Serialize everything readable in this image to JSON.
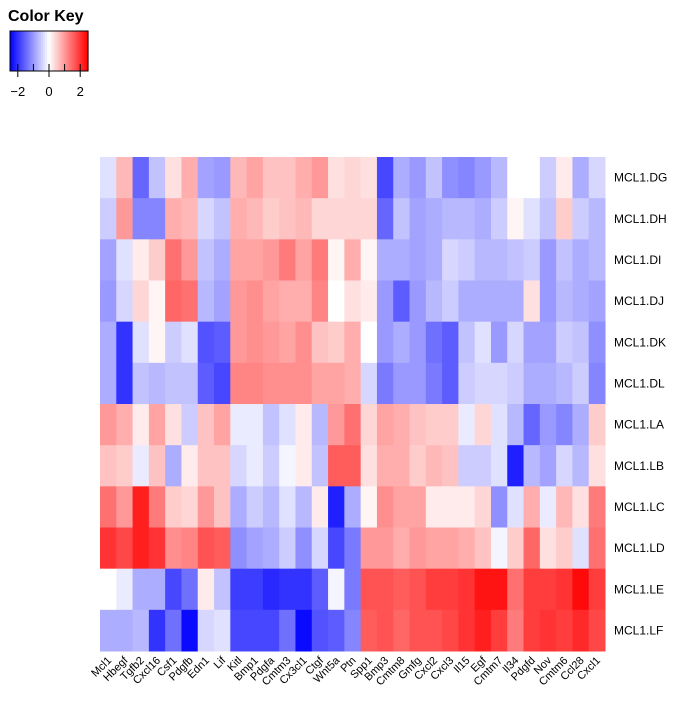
{
  "chart_data": {
    "type": "heatmap",
    "color_key": {
      "title": "Color Key",
      "ticks": [
        "−2",
        "0",
        "2"
      ],
      "range": [
        -2.5,
        2.5
      ],
      "colors": {
        "low": "#0000ff",
        "mid": "#ffffff",
        "high": "#ff0000"
      }
    },
    "rows": [
      "MCL1.DG",
      "MCL1.DH",
      "MCL1.DI",
      "MCL1.DJ",
      "MCL1.DK",
      "MCL1.DL",
      "MCL1.LA",
      "MCL1.LB",
      "MCL1.LC",
      "MCL1.LD",
      "MCL1.LE",
      "MCL1.LF"
    ],
    "columns": [
      "Mcl1",
      "Hbegf",
      "Tgfb2",
      "Cxcl16",
      "Csf1",
      "Pdgfb",
      "Edn1",
      "Lif",
      "Kitl",
      "Bmp1",
      "Pdgfa",
      "Cmtm3",
      "Cx3cl1",
      "Ctgf",
      "Wnt5a",
      "Ptn",
      "Spp1",
      "Bmp3",
      "Cmtm8",
      "Gmfg",
      "Cxcl2",
      "Cxcl3",
      "Il15",
      "Egf",
      "Cmtm7",
      "Il34",
      "Pdgfd",
      "Nov",
      "Cmtm6",
      "Ccl28",
      "Cxcl1"
    ],
    "values": [
      [
        -0.3,
        0.7,
        -1.5,
        -0.6,
        0.3,
        0.8,
        -0.9,
        -1.0,
        0.7,
        0.9,
        0.6,
        0.6,
        0.8,
        1.0,
        0.3,
        0.4,
        0.3,
        -1.8,
        -0.8,
        -1.0,
        -0.6,
        -1.1,
        -1.2,
        -1.0,
        -0.7,
        0.0,
        0.0,
        -0.5,
        0.2,
        -0.8,
        -0.4
      ],
      [
        -0.5,
        1.0,
        -1.2,
        -1.2,
        0.8,
        0.7,
        -0.4,
        -0.6,
        0.8,
        0.7,
        0.5,
        0.6,
        0.7,
        0.4,
        0.4,
        0.4,
        0.4,
        -1.5,
        -0.6,
        -0.9,
        -0.8,
        -0.7,
        -0.7,
        -0.8,
        -0.5,
        0.1,
        -0.3,
        -0.6,
        0.5,
        -0.5,
        -0.7
      ],
      [
        -0.9,
        -0.3,
        0.2,
        0.5,
        1.4,
        1.0,
        -0.6,
        -0.8,
        0.9,
        0.9,
        1.0,
        1.3,
        0.9,
        1.3,
        0.1,
        0.8,
        0.1,
        -0.8,
        -0.8,
        -0.9,
        -0.8,
        -0.4,
        -0.5,
        -0.7,
        -0.7,
        -0.6,
        -0.5,
        -1.0,
        -0.6,
        -0.8,
        -0.7
      ],
      [
        -1.0,
        -0.4,
        0.4,
        0.1,
        1.5,
        1.4,
        -0.7,
        -0.9,
        1.0,
        1.1,
        0.9,
        0.8,
        0.8,
        1.2,
        0.0,
        0.3,
        0.2,
        -1.0,
        -1.6,
        -1.0,
        -0.7,
        -0.5,
        -0.8,
        -0.8,
        -0.8,
        -0.8,
        0.3,
        -1.0,
        -0.7,
        -0.8,
        -0.9
      ],
      [
        -0.8,
        -2.0,
        -0.3,
        0.1,
        -0.5,
        -0.3,
        -1.7,
        -1.6,
        1.0,
        1.1,
        1.0,
        0.9,
        1.1,
        0.6,
        0.5,
        0.8,
        0.0,
        -1.0,
        -0.8,
        -1.0,
        -1.4,
        -1.6,
        -0.6,
        -0.3,
        -1.0,
        -0.4,
        -0.9,
        -0.9,
        -0.5,
        -0.6,
        -1.1
      ],
      [
        -0.8,
        -2.0,
        -0.6,
        -0.7,
        -0.6,
        -0.6,
        -1.6,
        -1.8,
        1.2,
        1.2,
        1.1,
        1.1,
        1.1,
        0.9,
        0.9,
        0.8,
        -0.4,
        -1.3,
        -1.0,
        -1.0,
        -1.3,
        -1.6,
        -0.5,
        -0.4,
        -0.4,
        -0.5,
        -0.8,
        -0.8,
        -0.7,
        -0.5,
        -1.2
      ],
      [
        1.0,
        0.8,
        0.2,
        0.9,
        0.3,
        -0.5,
        0.6,
        0.9,
        -0.2,
        -0.2,
        -0.6,
        -0.3,
        0.2,
        -0.7,
        1.0,
        1.4,
        0.4,
        0.9,
        0.8,
        0.6,
        0.5,
        0.5,
        -0.2,
        0.4,
        -0.3,
        -0.7,
        -1.5,
        -1.0,
        -1.2,
        -0.8,
        0.5
      ],
      [
        0.6,
        0.5,
        -0.2,
        0.6,
        -0.8,
        0.2,
        0.6,
        0.6,
        -0.4,
        -0.2,
        -0.5,
        -0.1,
        0.2,
        -0.6,
        1.6,
        1.6,
        0.3,
        0.8,
        0.8,
        0.5,
        0.7,
        0.6,
        -0.5,
        -0.5,
        -0.3,
        -2.2,
        -0.7,
        -0.9,
        -0.4,
        -0.7,
        0.3
      ],
      [
        1.4,
        1.0,
        2.2,
        1.3,
        0.5,
        0.4,
        1.0,
        0.6,
        -0.8,
        -0.5,
        -0.7,
        -0.3,
        -0.7,
        0.2,
        -2.2,
        -0.8,
        0.1,
        1.1,
        0.9,
        0.9,
        0.2,
        0.2,
        0.2,
        0.4,
        -1.1,
        -0.3,
        0.8,
        -0.2,
        0.7,
        0.3,
        1.3
      ],
      [
        2.0,
        1.8,
        2.2,
        2.0,
        1.1,
        1.2,
        1.7,
        1.6,
        -1.1,
        -0.9,
        -0.8,
        -0.5,
        -1.1,
        -0.4,
        -1.8,
        -1.3,
        1.0,
        1.0,
        0.8,
        1.0,
        0.9,
        0.9,
        0.8,
        0.6,
        -0.1,
        0.5,
        1.5,
        0.3,
        0.5,
        -0.3,
        1.4
      ],
      [
        0.0,
        -0.2,
        -0.8,
        -0.8,
        -1.8,
        -1.4,
        0.2,
        -0.6,
        -1.9,
        -1.9,
        -2.1,
        -2.0,
        -2.0,
        -1.6,
        -0.1,
        -1.3,
        1.7,
        1.7,
        1.6,
        1.7,
        1.9,
        1.9,
        2.0,
        2.3,
        2.3,
        1.4,
        1.9,
        1.9,
        2.0,
        2.4,
        1.9
      ],
      [
        -0.8,
        -0.8,
        -0.7,
        -2.0,
        -1.4,
        -2.4,
        -0.4,
        -0.3,
        -1.8,
        -1.8,
        -1.8,
        -1.4,
        -2.4,
        -1.7,
        -1.6,
        -1.2,
        1.6,
        1.7,
        1.5,
        1.7,
        1.7,
        1.8,
        2.0,
        2.2,
        1.9,
        1.3,
        1.9,
        2.0,
        1.9,
        2.1,
        1.8
      ]
    ]
  }
}
